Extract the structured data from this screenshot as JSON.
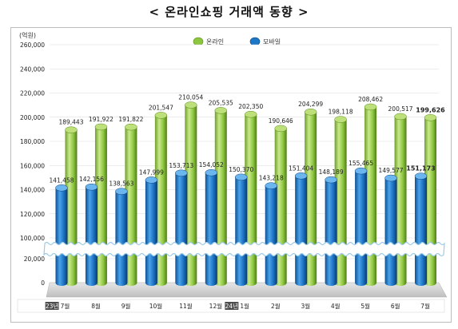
{
  "title": "< 온라인쇼핑 거래액 동향 >",
  "colors": {
    "online_light": "#bde07a",
    "online_mid": "#8cc63f",
    "online_dark": "#5a8a1c",
    "mobile_light": "#6cb6f0",
    "mobile_mid": "#1e78c8",
    "mobile_dark": "#0a3f7a"
  },
  "chart_data": {
    "type": "bar",
    "unit_label": "(억원)",
    "y_ticks_upper": [
      "260,000",
      "240,000",
      "220,000",
      "200,000",
      "180,000",
      "160,000",
      "140,000",
      "120,000",
      "100,000"
    ],
    "y_ticks_lower": [
      "20,000",
      "0"
    ],
    "axis_break": true,
    "categories": [
      "7월",
      "8월",
      "9월",
      "10월",
      "11월",
      "12월",
      "1월",
      "2월",
      "3월",
      "4월",
      "5월",
      "6월",
      "7월"
    ],
    "year_badges": [
      {
        "index": 0,
        "label": "23년"
      },
      {
        "index": 6,
        "label": "24년"
      }
    ],
    "legend_position": "top-center",
    "series": [
      {
        "name": "온라인",
        "values": [
          189443,
          191922,
          191822,
          201547,
          210054,
          205535,
          202350,
          190646,
          204299,
          198118,
          208462,
          200517,
          199626
        ],
        "labels": [
          "189,443",
          "191,922",
          "191,822",
          "201,547",
          "210,054",
          "205,535",
          "202,350",
          "190,646",
          "204,299",
          "198,118",
          "208,462",
          "200,517",
          "199,626"
        ]
      },
      {
        "name": "모바일",
        "values": [
          141458,
          142156,
          138563,
          147999,
          153713,
          154052,
          150370,
          143218,
          151404,
          148189,
          155465,
          149577,
          151173
        ],
        "labels": [
          "141,458",
          "142,156",
          "138,563",
          "147,999",
          "153,713",
          "154,052",
          "150,370",
          "143,218",
          "151,404",
          "148,189",
          "155,465",
          "149,577",
          "151,173"
        ]
      }
    ]
  }
}
